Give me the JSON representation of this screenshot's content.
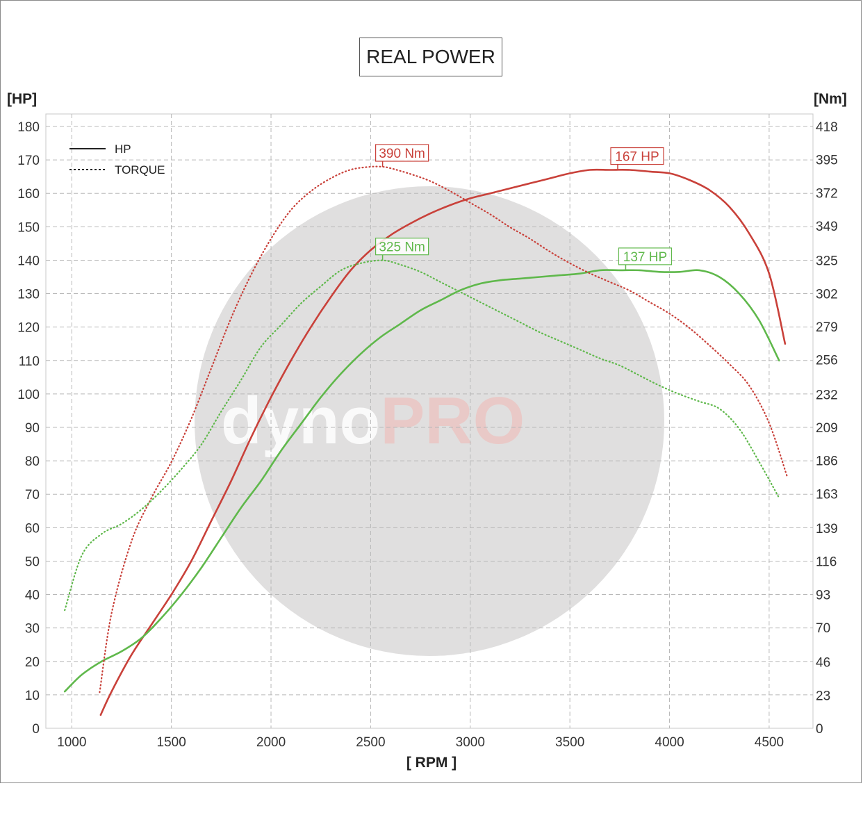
{
  "chart_data": {
    "type": "line",
    "title": "REAL POWER",
    "xlabel": "[ RPM ]",
    "y_left_label": "[HP]",
    "y_right_label": "[Nm]",
    "xlim": [
      870,
      4720
    ],
    "ylim_left": [
      0,
      180
    ],
    "ylim_right": [
      0,
      418
    ],
    "x_ticks": [
      1000,
      1500,
      2000,
      2500,
      3000,
      3500,
      4000,
      4500
    ],
    "y_left_ticks": [
      0,
      10,
      20,
      30,
      40,
      50,
      60,
      70,
      80,
      90,
      100,
      110,
      120,
      130,
      140,
      150,
      160,
      170,
      180
    ],
    "y_right_ticks": [
      0,
      23,
      46,
      70,
      93,
      116,
      139,
      163,
      186,
      209,
      232,
      256,
      279,
      302,
      325,
      349,
      372,
      395,
      418
    ],
    "grid": true,
    "legend": {
      "position": "top-left",
      "entries": [
        {
          "label": "HP",
          "style": "solid"
        },
        {
          "label": "TORQUE",
          "style": "dotted"
        }
      ]
    },
    "watermark": {
      "part1": "dyno",
      "part2": "PRO"
    },
    "colors": {
      "tuned": "#c9413a",
      "stock": "#5fb84b",
      "grid": "#b8b8b8"
    },
    "series": [
      {
        "id": "hp_tuned",
        "axis": "left",
        "style": "solid",
        "color": "#c9413a",
        "x": [
          1145,
          1200,
          1300,
          1400,
          1500,
          1600,
          1700,
          1800,
          1900,
          2000,
          2100,
          2200,
          2300,
          2400,
          2500,
          2600,
          2700,
          2800,
          2900,
          3000,
          3100,
          3200,
          3300,
          3400,
          3500,
          3600,
          3700,
          3800,
          3900,
          4000,
          4100,
          4200,
          4300,
          4400,
          4500,
          4580
        ],
        "y": [
          4,
          11,
          22,
          31,
          40,
          50,
          62,
          74,
          87,
          99,
          110,
          120,
          129,
          137,
          143,
          147.5,
          151,
          154,
          156.5,
          158.5,
          160,
          161.5,
          163,
          164.5,
          166,
          167,
          167,
          167,
          166.5,
          166,
          164,
          161,
          156,
          148,
          136,
          115
        ]
      },
      {
        "id": "hp_stock",
        "axis": "left",
        "style": "solid",
        "color": "#5fb84b",
        "x": [
          965,
          1050,
          1150,
          1250,
          1350,
          1450,
          1550,
          1650,
          1750,
          1850,
          1950,
          2050,
          2150,
          2250,
          2350,
          2450,
          2550,
          2650,
          2750,
          2850,
          2950,
          3050,
          3150,
          3250,
          3350,
          3450,
          3550,
          3650,
          3750,
          3850,
          3950,
          4050,
          4150,
          4250,
          4350,
          4450,
          4550
        ],
        "y": [
          11,
          16,
          20,
          23,
          27,
          33,
          40,
          48,
          57,
          66,
          74,
          83,
          91,
          99,
          106,
          112,
          117,
          121,
          125,
          128,
          131,
          133,
          134,
          134.5,
          135,
          135.5,
          136,
          137,
          137,
          137,
          136.5,
          136.5,
          137,
          135,
          130,
          122,
          110
        ]
      },
      {
        "id": "tq_tuned",
        "axis": "right",
        "style": "dotted",
        "color": "#c9413a",
        "x": [
          1140,
          1200,
          1300,
          1400,
          1500,
          1600,
          1700,
          1800,
          1900,
          2000,
          2100,
          2200,
          2300,
          2400,
          2500,
          2560,
          2600,
          2700,
          2800,
          2900,
          3000,
          3100,
          3200,
          3300,
          3400,
          3500,
          3600,
          3700,
          3800,
          3900,
          4000,
          4100,
          4200,
          4300,
          4400,
          4500,
          4590
        ],
        "y": [
          25,
          80,
          130,
          160,
          185,
          215,
          250,
          285,
          315,
          340,
          360,
          373,
          382,
          388,
          390,
          390,
          389,
          385,
          380,
          373,
          365,
          357,
          348,
          340,
          331,
          323,
          316,
          310,
          304,
          296,
          288,
          278,
          266,
          253,
          238,
          212,
          175
        ]
      },
      {
        "id": "tq_stock",
        "axis": "right",
        "style": "dotted",
        "color": "#5fb84b",
        "x": [
          965,
          1050,
          1150,
          1250,
          1350,
          1450,
          1550,
          1650,
          1750,
          1850,
          1950,
          2050,
          2150,
          2250,
          2350,
          2450,
          2560,
          2650,
          2750,
          2850,
          2950,
          3050,
          3150,
          3250,
          3350,
          3450,
          3550,
          3650,
          3750,
          3850,
          3950,
          4050,
          4150,
          4250,
          4350,
          4450,
          4550
        ],
        "y": [
          82,
          120,
          135,
          142,
          152,
          165,
          180,
          197,
          220,
          242,
          265,
          280,
          295,
          307,
          318,
          323,
          325,
          322,
          317,
          310,
          303,
          296,
          289,
          282,
          275,
          269,
          263,
          257,
          252,
          245,
          238,
          232,
          227,
          222,
          208,
          185,
          160
        ]
      }
    ],
    "annotations": [
      {
        "text": "390 Nm",
        "x": 2560,
        "y": 390,
        "axis": "right",
        "color": "#c9413a"
      },
      {
        "text": "167 HP",
        "x": 3740,
        "y": 167,
        "axis": "left",
        "color": "#c9413a"
      },
      {
        "text": "325 Nm",
        "x": 2560,
        "y": 325,
        "axis": "right",
        "color": "#5fb84b"
      },
      {
        "text": "137 HP",
        "x": 3780,
        "y": 137,
        "axis": "left",
        "color": "#5fb84b"
      }
    ]
  }
}
